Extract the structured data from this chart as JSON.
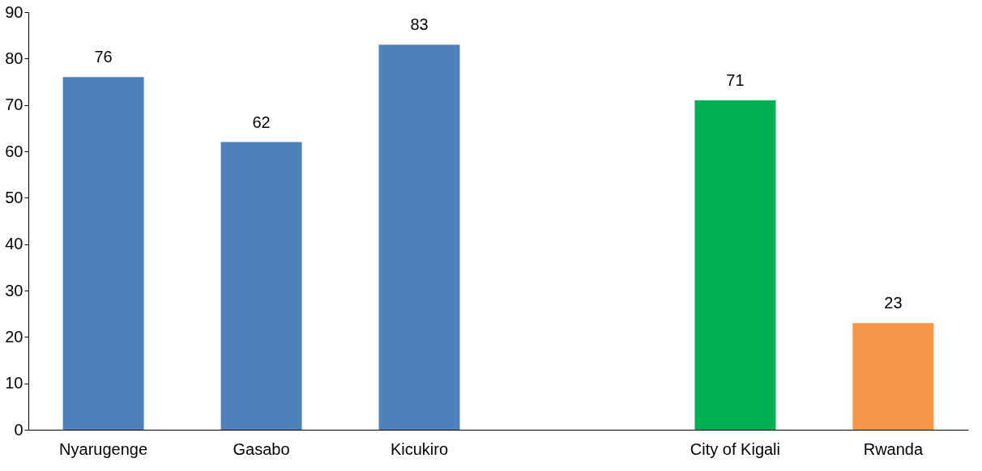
{
  "chart_data": {
    "type": "bar",
    "categories": [
      "Nyarugenge",
      "Gasabo",
      "Kicukiro",
      null,
      "City of Kigali",
      "Rwanda"
    ],
    "values": [
      76,
      62,
      83,
      null,
      71,
      23
    ],
    "colors": [
      "#4f81bd",
      "#4f81bd",
      "#4f81bd",
      "#4f81bd",
      "#00b050",
      "#f79646"
    ],
    "ylim": [
      0,
      90
    ],
    "yticks": [
      0,
      10,
      20,
      30,
      40,
      50,
      60,
      70,
      80,
      90
    ],
    "grid": false,
    "data_labels": true
  }
}
